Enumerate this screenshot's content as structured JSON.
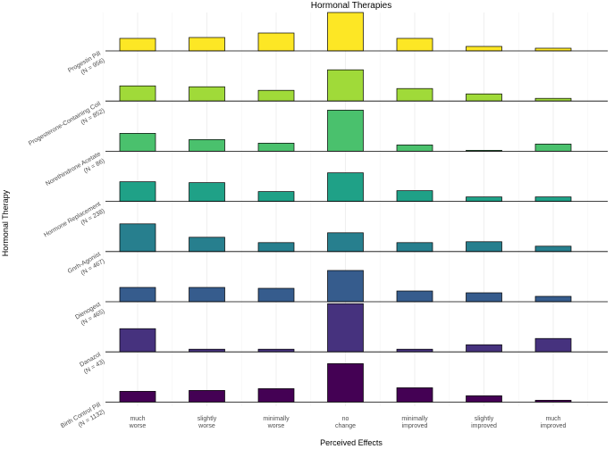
{
  "chart_data": {
    "type": "bar",
    "title": "Hormonal Therapies",
    "x_label": "Perceived Effects",
    "y_label": "Hormonal Therapy",
    "categories": [
      [
        "much",
        "worse"
      ],
      [
        "slightly",
        "worse"
      ],
      [
        "minimally",
        "worse"
      ],
      [
        "no",
        "change"
      ],
      [
        "minimally",
        "improved"
      ],
      [
        "slightly",
        "improved"
      ],
      [
        "much",
        "improved"
      ]
    ],
    "series": [
      {
        "name": "Progestin Pill",
        "n_label": "(N = 956)",
        "color": "#fde725",
        "values": [
          14,
          15,
          20,
          43,
          14,
          5,
          3
        ]
      },
      {
        "name": "Progesterone-Containing Coil",
        "n_label": "(N = 852)",
        "color": "#a0da39",
        "values": [
          17,
          16,
          12,
          35,
          14,
          8,
          3
        ]
      },
      {
        "name": "Norethindrone Acetate",
        "n_label": "(N = 86)",
        "color": "#4ac16d",
        "values": [
          20,
          13,
          9,
          46,
          7,
          1,
          8
        ]
      },
      {
        "name": "Hormone Replacement",
        "n_label": "(N = 238)",
        "color": "#1fa187",
        "values": [
          22,
          21,
          11,
          32,
          12,
          5,
          5
        ]
      },
      {
        "name": "Gnrh-Agonist",
        "n_label": "(N = 467)",
        "color": "#277f8e",
        "values": [
          31,
          16,
          10,
          21,
          10,
          11,
          6
        ]
      },
      {
        "name": "Dienogest",
        "n_label": "(N = 465)",
        "color": "#365c8d",
        "values": [
          16,
          16,
          15,
          35,
          12,
          10,
          6
        ]
      },
      {
        "name": "Danazol",
        "n_label": "(N = 43)",
        "color": "#46327e",
        "values": [
          26,
          3,
          3,
          54,
          3,
          8,
          15
        ]
      },
      {
        "name": "Birth Control Pill",
        "n_label": "(N = 1132)",
        "color": "#440154",
        "values": [
          12,
          13,
          15,
          43,
          16,
          7,
          2
        ]
      }
    ]
  }
}
